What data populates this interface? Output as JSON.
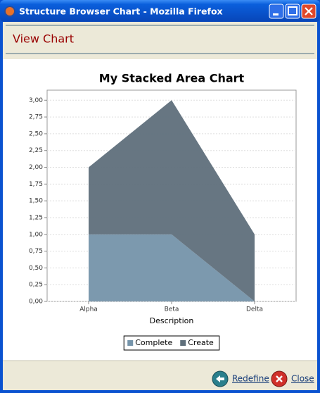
{
  "window": {
    "title": "Structure Browser Chart - Mozilla Firefox"
  },
  "header": {
    "title": "View Chart"
  },
  "chart_data": {
    "type": "area",
    "stacked": true,
    "title": "My Stacked Area Chart",
    "x_label": "Description",
    "categories": [
      "Alpha",
      "Beta",
      "Delta"
    ],
    "series": [
      {
        "name": "Complete",
        "color": "#7594aa",
        "values": [
          1,
          1,
          0
        ]
      },
      {
        "name": "Create",
        "color": "#5f6f7b",
        "values": [
          1,
          2,
          1
        ]
      }
    ],
    "ylim": [
      0,
      3.15
    ],
    "yticks": [
      {
        "value": 0,
        "label": "0,00"
      },
      {
        "value": 0.25,
        "label": "0,25"
      },
      {
        "value": 0.5,
        "label": "0,50"
      },
      {
        "value": 0.75,
        "label": "0,75"
      },
      {
        "value": 1,
        "label": "1,00"
      },
      {
        "value": 1.25,
        "label": "1,25"
      },
      {
        "value": 1.5,
        "label": "1,50"
      },
      {
        "value": 1.75,
        "label": "1,75"
      },
      {
        "value": 2,
        "label": "2,00"
      },
      {
        "value": 2.25,
        "label": "2,25"
      },
      {
        "value": 2.5,
        "label": "2,50"
      },
      {
        "value": 2.75,
        "label": "2,75"
      },
      {
        "value": 3,
        "label": "3,00"
      }
    ],
    "grid": true,
    "legend": "bottom"
  },
  "footer": {
    "links": [
      "Redefine",
      "Close"
    ]
  }
}
